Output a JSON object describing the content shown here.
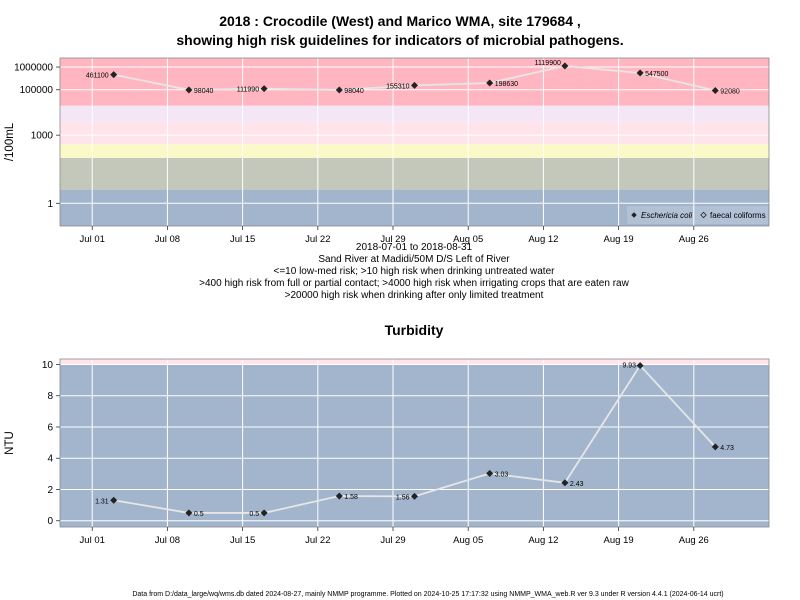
{
  "footer": "Data from D:/data_large/wq/wms.db dated 2024-08-27, mainly NMMP programme. Plotted on 2024-10-25 17:17:32 using NMMP_WMA_web.R ver 9.3 under R version 4.4.1 (2024-06-14 ucrt)",
  "colors": {
    "high_risk": "#FFB6C1",
    "pink_light": "#FFE4EC",
    "lavender": "#F4E6F4",
    "yellow": "#FAFAC8",
    "grey_green": "#C3C8BA",
    "blue_grey": "#A2B5CD",
    "line": "#E6E6E6",
    "marker": "#222222"
  },
  "chart_data": [
    {
      "type": "line",
      "title": "2018 : Crocodile (West) and Marico WMA, site 179684 ,",
      "title2": "showing high risk guidelines for indicators of microbial pathogens.",
      "xlabel": "",
      "ylabel": "/100mL",
      "x_ticks": [
        "Jul 01",
        "Jul 08",
        "Jul 15",
        "Jul 22",
        "Jul 29",
        "Aug 05",
        "Aug 12",
        "Aug 19",
        "Aug 26"
      ],
      "y_ticks": [
        "1",
        "1000",
        "100000",
        "1000000"
      ],
      "log_scale": true,
      "xlim": [
        "2018-06-28",
        "2018-09-02"
      ],
      "ylim": [
        0.1,
        2500000
      ],
      "grid": true,
      "bands": [
        {
          "from": 0.1,
          "to": 4,
          "color": "#A2B5CD"
        },
        {
          "from": 4,
          "to": 100,
          "color": "#C3C8BA"
        },
        {
          "from": 100,
          "to": 400,
          "color": "#FAFAC8"
        },
        {
          "from": 400,
          "to": 4000,
          "color": "#FFE4EC"
        },
        {
          "from": 4000,
          "to": 20000,
          "color": "#F4E6F4"
        },
        {
          "from": 20000,
          "to": 2500000,
          "color": "#FFB6C1"
        }
      ],
      "series": [
        {
          "name": "Eschericia coli",
          "x": [
            "2018-07-03",
            "2018-07-10",
            "2018-07-17",
            "2018-07-24",
            "2018-07-31",
            "2018-08-07",
            "2018-08-14",
            "2018-08-21",
            "2018-08-28"
          ],
          "values": [
            461100,
            98040,
            111990,
            98040,
            155310,
            198630,
            1119900,
            547500,
            92080
          ],
          "labels": [
            "461100",
            "98040",
            "111990",
            "98040",
            "155310",
            "198630",
            "1119900",
            "547500",
            "92080"
          ]
        }
      ],
      "legend_entries": [
        "Eschericia coli",
        "faecal coliforms"
      ],
      "legend_position": "bottom-right",
      "subtitle_lines": [
        "2018-07-01 to 2018-08-31",
        "Sand River at Madidi/50M D/S Left of River",
        "<=10 low-med risk; >10 high risk when drinking untreated water",
        ">400 high risk from full or partial contact; >4000 high risk when irrigating crops that are eaten raw",
        ">20000 high risk when drinking after only limited treatment"
      ]
    },
    {
      "type": "line",
      "title": "Turbidity",
      "xlabel": "",
      "ylabel": "NTU",
      "x_ticks": [
        "Jul 01",
        "Jul 08",
        "Jul 15",
        "Jul 22",
        "Jul 29",
        "Aug 05",
        "Aug 12",
        "Aug 19",
        "Aug 26"
      ],
      "y_ticks": [
        "0",
        "2",
        "4",
        "6",
        "8",
        "10"
      ],
      "xlim": [
        "2018-06-28",
        "2018-09-02"
      ],
      "ylim": [
        -0.4,
        10.35
      ],
      "grid": true,
      "bands": [
        {
          "from": -0.4,
          "to": 10,
          "color": "#A2B5CD"
        },
        {
          "from": 10,
          "to": 10.35,
          "color": "#FFE4EC"
        }
      ],
      "series": [
        {
          "x": [
            "2018-07-03",
            "2018-07-10",
            "2018-07-17",
            "2018-07-24",
            "2018-07-31",
            "2018-08-07",
            "2018-08-14",
            "2018-08-21",
            "2018-08-28"
          ],
          "values": [
            1.31,
            0.5,
            0.5,
            1.58,
            1.56,
            3.03,
            2.43,
            9.93,
            4.73
          ],
          "labels": [
            "1.31",
            "0.5",
            "0.5",
            "1.58",
            "1.56",
            "3.03",
            "2.43",
            "9.93",
            "4.73"
          ]
        }
      ]
    }
  ]
}
